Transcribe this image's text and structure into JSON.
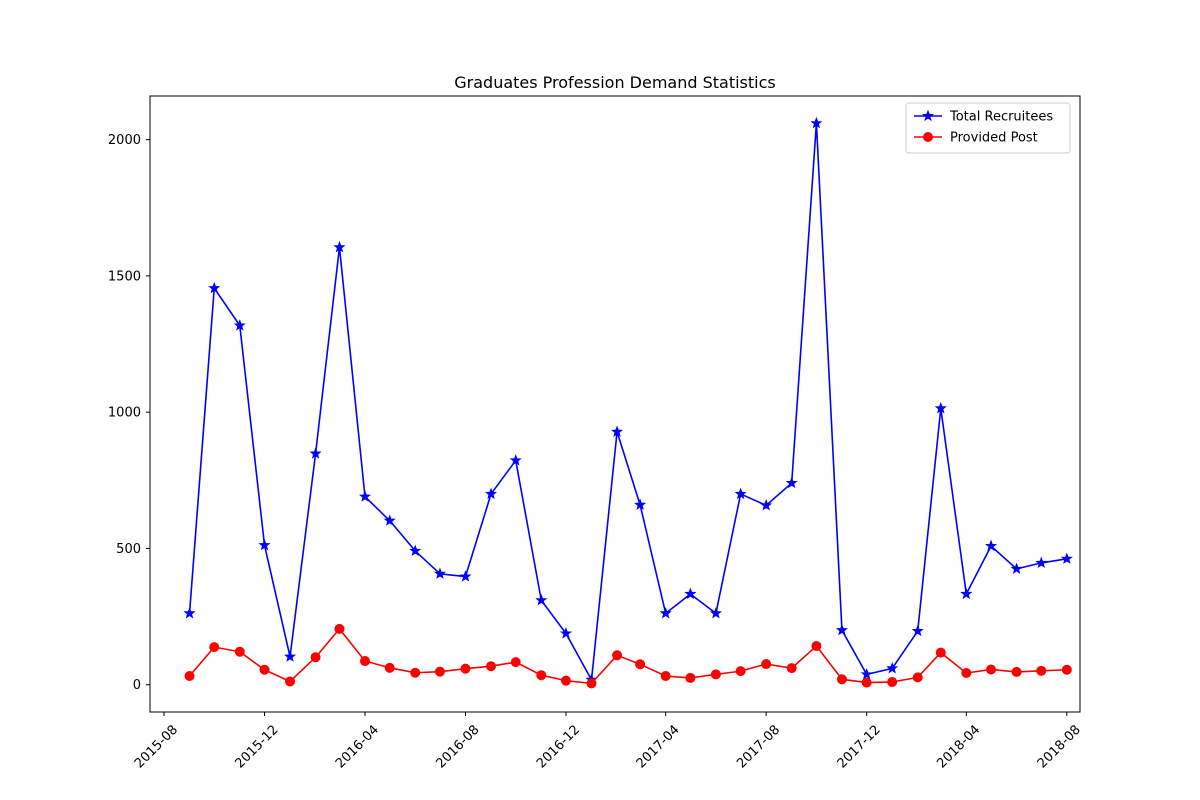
{
  "chart_data": {
    "type": "line",
    "title": "Graduates Profession Demand Statistics",
    "xlabel": "",
    "ylabel": "",
    "x": [
      "2015-09",
      "2015-10",
      "2015-11",
      "2015-12",
      "2016-01",
      "2016-02",
      "2016-03",
      "2016-04",
      "2016-05",
      "2016-06",
      "2016-07",
      "2016-08",
      "2016-09",
      "2016-10",
      "2016-11",
      "2016-12",
      "2017-01",
      "2017-02",
      "2017-03",
      "2017-04",
      "2017-05",
      "2017-06",
      "2017-07",
      "2017-08",
      "2017-09",
      "2017-10",
      "2017-11",
      "2017-12",
      "2018-01",
      "2018-02",
      "2018-03",
      "2018-04",
      "2018-05",
      "2018-06",
      "2018-07",
      "2018-08"
    ],
    "series": [
      {
        "name": "Total Recruitees",
        "color": "#0000ff",
        "marker": "star",
        "values": [
          262,
          1455,
          1318,
          512,
          103,
          848,
          1605,
          690,
          602,
          491,
          407,
          397,
          700,
          823,
          310,
          188,
          18,
          928,
          660,
          262,
          333,
          262,
          700,
          658,
          740,
          2060,
          200,
          38,
          60,
          197,
          1014,
          333,
          509,
          425,
          447,
          462
        ]
      },
      {
        "name": "Provided Post",
        "color": "#ff0000",
        "marker": "circle",
        "values": [
          32,
          138,
          121,
          55,
          12,
          101,
          205,
          87,
          62,
          44,
          48,
          59,
          68,
          83,
          35,
          15,
          5,
          108,
          75,
          32,
          25,
          38,
          50,
          76,
          61,
          142,
          20,
          8,
          10,
          27,
          118,
          43,
          56,
          47,
          51,
          55
        ]
      }
    ],
    "xticks": [
      "2015-08",
      "2015-12",
      "2016-04",
      "2016-08",
      "2016-12",
      "2017-04",
      "2017-08",
      "2017-12",
      "2018-04",
      "2018-08"
    ],
    "yticks": [
      0,
      500,
      1000,
      1500,
      2000
    ],
    "xlim": [
      "2015-07-15",
      "2018-08-17"
    ],
    "ylim": [
      -100,
      2160
    ],
    "grid": false,
    "legend_position": "top-right"
  }
}
